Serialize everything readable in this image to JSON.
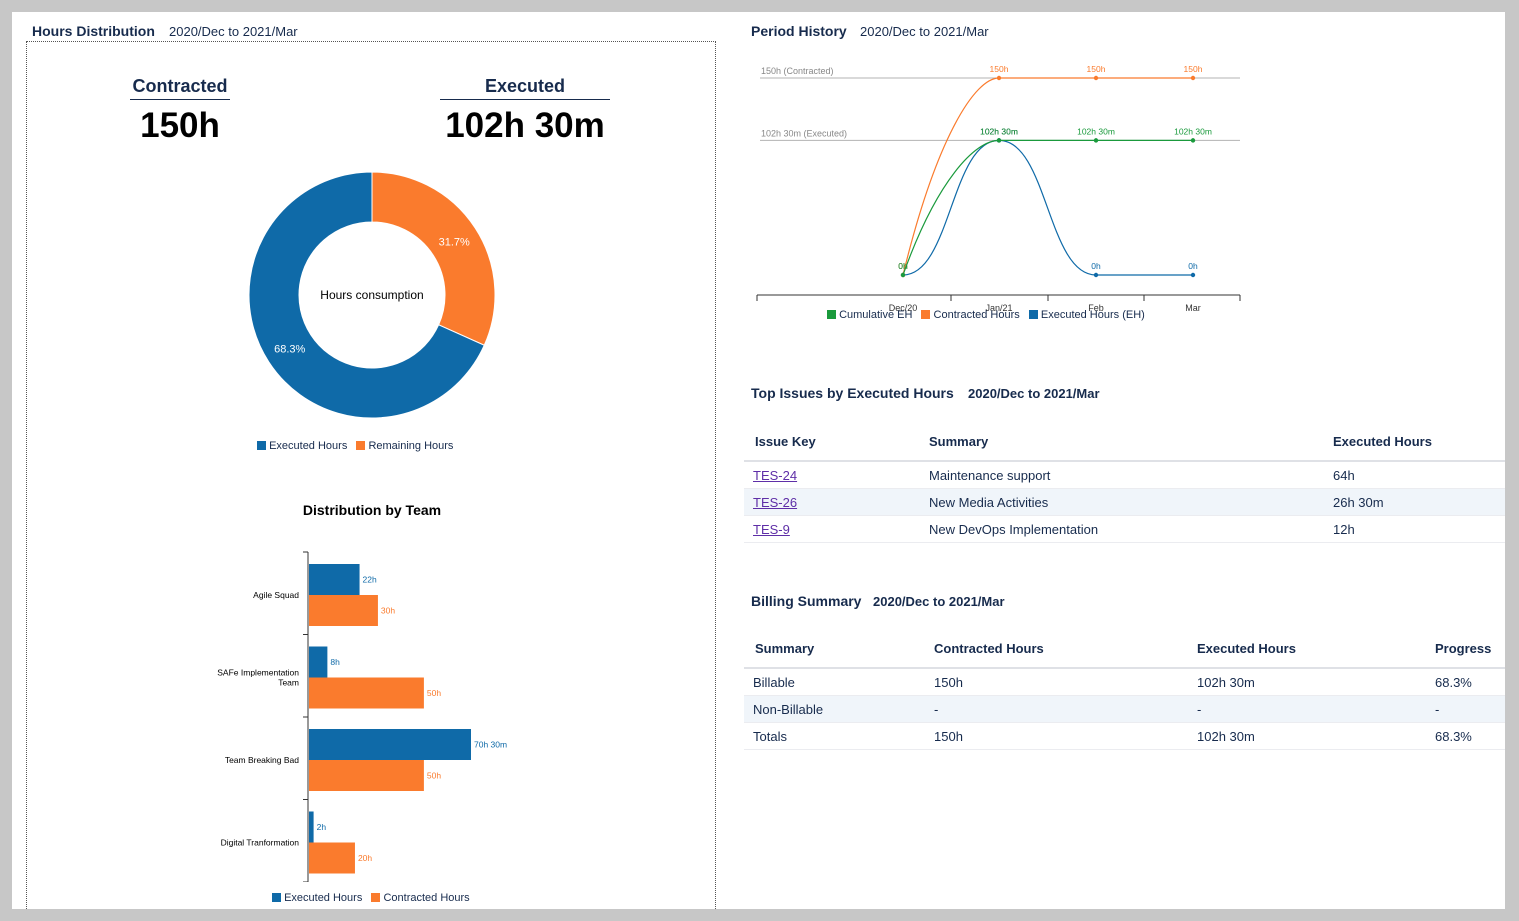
{
  "hours_distribution": {
    "title": "Hours Distribution",
    "period": "2020/Dec to 2021/Mar",
    "contracted_label": "Contracted",
    "contracted_value": "150h",
    "executed_label": "Executed",
    "executed_value": "102h 30m"
  },
  "period_history": {
    "title": "Period History",
    "period": "2020/Dec to 2021/Mar"
  },
  "top_issues": {
    "title": "Top Issues by Executed Hours",
    "period": "2020/Dec to 2021/Mar",
    "headers": [
      "Issue Key",
      "Summary",
      "Executed Hours"
    ],
    "rows": [
      {
        "key": "TES-24",
        "summary": "Maintenance support",
        "hours": "64h"
      },
      {
        "key": "TES-26",
        "summary": "New Media Activities",
        "hours": "26h 30m"
      },
      {
        "key": "TES-9",
        "summary": "New DevOps Implementation",
        "hours": "12h"
      }
    ]
  },
  "billing": {
    "title": "Billing Summary",
    "period": "2020/Dec to 2021/Mar",
    "headers": [
      "Summary",
      "Contracted Hours",
      "Executed Hours",
      "Progress"
    ],
    "rows": [
      {
        "summary": "Billable",
        "contracted": "150h",
        "executed": "102h 30m",
        "progress": "68.3%"
      },
      {
        "summary": "Non-Billable",
        "contracted": "-",
        "executed": "-",
        "progress": "-"
      },
      {
        "summary": "Totals",
        "contracted": "150h",
        "executed": "102h 30m",
        "progress": "68.3%"
      }
    ]
  },
  "colors": {
    "executed": "#0f6aa8",
    "remaining": "#fa7b2d",
    "cumulative": "#1a9a3c"
  },
  "chart_data": [
    {
      "type": "pie",
      "variant": "donut",
      "center_label": "Hours consumption",
      "categories": [
        "Executed Hours",
        "Remaining Hours"
      ],
      "values": [
        68.3,
        31.7
      ],
      "value_labels": [
        "68.3%",
        "31.7%"
      ],
      "legend": "bottom"
    },
    {
      "type": "line",
      "title": "Period History",
      "categories": [
        "Dec/20",
        "Jan/21",
        "Feb",
        "Mar"
      ],
      "reference_lines": [
        {
          "label": "150h (Contracted)",
          "value": 150
        },
        {
          "label": "102h 30m (Executed)",
          "value": 102.5
        }
      ],
      "series": [
        {
          "name": "Cumulative EH",
          "values": [
            0,
            102.5,
            102.5,
            102.5
          ],
          "labels": [
            "0h",
            "102h 30m",
            "102h 30m",
            "102h 30m"
          ]
        },
        {
          "name": "Contracted Hours",
          "values": [
            0,
            150,
            150,
            150
          ],
          "labels": [
            "0h",
            "150h",
            "150h",
            "150h"
          ]
        },
        {
          "name": "Executed Hours (EH)",
          "values": [
            0,
            102.5,
            0,
            0
          ],
          "labels": [
            "0h",
            "102h 30m",
            "0h",
            "0h"
          ]
        }
      ],
      "ylim": [
        0,
        150
      ],
      "legend": "bottom"
    },
    {
      "type": "bar",
      "orientation": "horizontal",
      "title": "Distribution by Team",
      "categories": [
        "Agile Squad",
        "SAFe Implementation Team",
        "Team Breaking Bad",
        "Digital Tranformation"
      ],
      "series": [
        {
          "name": "Executed Hours",
          "values": [
            22,
            8,
            70.5,
            2
          ],
          "labels": [
            "22h",
            "8h",
            "70h 30m",
            "2h"
          ]
        },
        {
          "name": "Contracted Hours",
          "values": [
            30,
            50,
            50,
            20
          ],
          "labels": [
            "30h",
            "50h",
            "50h",
            "20h"
          ]
        }
      ],
      "xlim": [
        0,
        80
      ],
      "legend": "bottom"
    }
  ]
}
